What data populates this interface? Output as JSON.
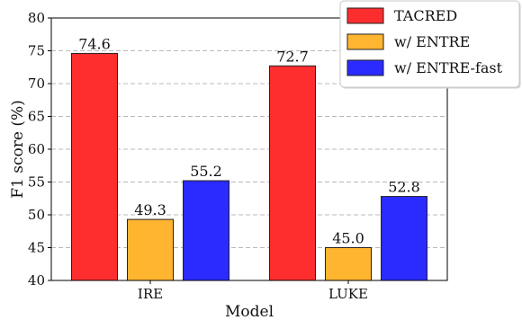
{
  "chart_data": {
    "type": "bar",
    "categories": [
      "IRE",
      "LUKE"
    ],
    "series": [
      {
        "name": "TACRED",
        "values": [
          74.6,
          72.7
        ],
        "color": "#ff2e2e"
      },
      {
        "name": "w/ ENTRE",
        "values": [
          49.3,
          45.0
        ],
        "color": "#ffb530"
      },
      {
        "name": "w/ ENTRE-fast",
        "values": [
          55.2,
          52.8
        ],
        "color": "#2b2bff"
      }
    ],
    "data_labels": [
      [
        "74.6",
        "72.7"
      ],
      [
        "49.3",
        "45.0"
      ],
      [
        "55.2",
        "52.8"
      ]
    ],
    "xlabel": "Model",
    "ylabel": "F1 score (%)",
    "ylim": [
      40,
      80
    ],
    "yticks": [
      40,
      45,
      50,
      55,
      60,
      65,
      70,
      75,
      80
    ],
    "ytick_labels": [
      "40",
      "45",
      "50",
      "55",
      "60",
      "65",
      "70",
      "75",
      "80"
    ],
    "grid": "horizontal dashed",
    "legend_position": "top-right"
  }
}
